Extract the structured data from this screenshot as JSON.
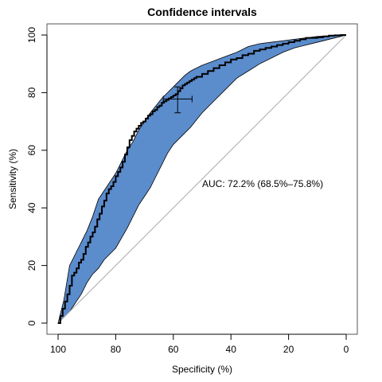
{
  "chart_data": {
    "type": "line",
    "title": "Confidence intervals",
    "xlabel": "Specificity (%)",
    "ylabel": "Sensitivity (%)",
    "xlim": [
      100,
      0
    ],
    "ylim": [
      0,
      100
    ],
    "x_reversed": true,
    "xticks": [
      100,
      80,
      60,
      40,
      20,
      0
    ],
    "yticks": [
      0,
      20,
      40,
      60,
      80,
      100
    ],
    "grid": false,
    "annotation": "AUC: 72.2% (68.5%–75.8%)",
    "colors": {
      "band": "#5b8ccc",
      "roc_line": "#000000",
      "diagonal": "#aaaaaa",
      "frame": "#555555"
    },
    "series": [
      {
        "name": "roc",
        "x": [
          100,
          99.2,
          98.4,
          97.6,
          96.8,
          96,
          95.2,
          94.4,
          93.6,
          92.8,
          92,
          91.2,
          90.4,
          89.6,
          88.8,
          88,
          87.2,
          86.4,
          85.6,
          84.8,
          84,
          83.2,
          82.4,
          81.6,
          80.8,
          80,
          79.2,
          78.4,
          77.6,
          76.8,
          76,
          75.2,
          74.4,
          73.6,
          72.8,
          72,
          71.2,
          70.4,
          69.6,
          68.8,
          68,
          67.2,
          66.4,
          65.6,
          64.8,
          64,
          63.2,
          62.4,
          61.6,
          60.8,
          60,
          59.2,
          58.4,
          57.6,
          56.8,
          56,
          55.2,
          54.4,
          53.6,
          52.8,
          52,
          50,
          48,
          46,
          44,
          42,
          40,
          38,
          36,
          34,
          32,
          30,
          28,
          26,
          24,
          22,
          20,
          18,
          16,
          14,
          12,
          10,
          8,
          6,
          4,
          2,
          0
        ],
        "y": [
          0,
          2.5,
          5,
          7.5,
          10,
          13,
          16.5,
          17.5,
          19,
          21,
          22,
          24,
          26.5,
          28,
          30,
          31.5,
          33.5,
          36,
          38,
          40.5,
          42.5,
          45,
          46.5,
          47.5,
          49,
          51,
          52.5,
          54,
          56,
          58.5,
          61,
          63.5,
          65,
          66.5,
          67.5,
          68.5,
          69.5,
          70,
          71,
          72,
          72.5,
          73.5,
          74,
          75,
          75.5,
          76.5,
          77,
          77.5,
          78,
          78.5,
          79,
          79.5,
          80.5,
          81.5,
          82.5,
          83,
          83.5,
          84,
          84.5,
          85,
          85.5,
          86.5,
          87.5,
          88.5,
          89.5,
          90.5,
          91.5,
          92,
          93,
          93.5,
          94.5,
          95,
          95.5,
          96,
          96.5,
          97,
          97.5,
          98,
          98.5,
          99,
          99,
          99.2,
          99.5,
          99.8,
          99.9,
          100,
          100
        ]
      }
    ],
    "ci_band": {
      "upper": {
        "x": [
          100,
          98,
          96,
          94,
          92,
          90,
          88,
          86,
          84,
          82,
          80,
          78,
          76,
          74,
          72,
          70,
          68,
          66,
          64,
          62,
          60,
          58,
          56,
          54,
          52,
          50,
          46,
          42,
          38,
          34,
          30,
          26,
          22,
          18,
          14,
          10,
          6,
          2,
          0
        ],
        "y": [
          0,
          8,
          20,
          24,
          28,
          32,
          37,
          43,
          46,
          49,
          52,
          56,
          60,
          63,
          67,
          70,
          73,
          75.5,
          78,
          80,
          82,
          84,
          86,
          87.5,
          88.5,
          89.5,
          91,
          92.5,
          94,
          96,
          97,
          97.5,
          98,
          98.5,
          99,
          99.5,
          99.7,
          99.9,
          100
        ]
      },
      "lower": {
        "x": [
          100,
          98,
          96,
          94,
          92,
          90,
          88,
          86,
          84,
          82,
          80,
          78,
          76,
          74,
          72,
          70,
          68,
          66,
          64,
          62,
          60,
          58,
          56,
          54,
          52,
          50,
          46,
          42,
          38,
          34,
          30,
          26,
          22,
          18,
          14,
          10,
          6,
          2,
          0
        ],
        "y": [
          0,
          2,
          4,
          7,
          10,
          14,
          17,
          19,
          22,
          24,
          26,
          29.5,
          33,
          37,
          41,
          44,
          47,
          51,
          55,
          59,
          62,
          64,
          66,
          68,
          70.5,
          73,
          77,
          81,
          85,
          87.5,
          90,
          92,
          94,
          95.5,
          96.5,
          97.5,
          98.5,
          99.5,
          100
        ]
      }
    },
    "threshold_cross": {
      "x": 58.5,
      "y": 77.8,
      "x_low": 53.5,
      "x_high": 63.5,
      "y_low": 73.0,
      "y_high": 82.0
    }
  }
}
